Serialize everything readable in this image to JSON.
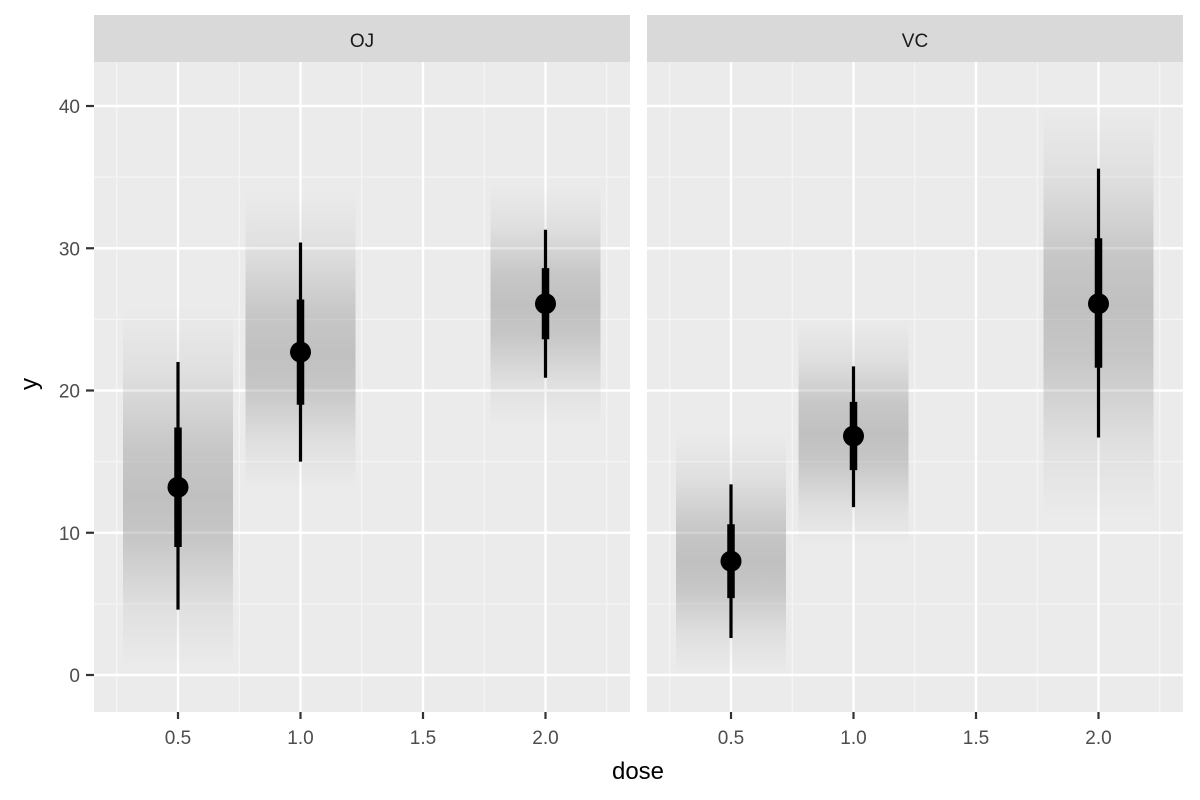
{
  "chart_data": {
    "type": "pointinterval",
    "title": "",
    "xlabel": "dose",
    "ylabel": "y",
    "ylim": [
      -2.5,
      43
    ],
    "yticks": [
      0,
      10,
      20,
      30,
      40
    ],
    "xticks": [
      0.5,
      1.0,
      1.5,
      2.0
    ],
    "xtick_labels": [
      "0.5",
      "1.0",
      "1.5",
      "2.0"
    ],
    "xlim": [
      0.25,
      2.34
    ],
    "grid": true,
    "legend": null,
    "facets": [
      {
        "label": "OJ",
        "points": [
          {
            "dose": 0.5,
            "y": 13.2,
            "inner_lo": 9.0,
            "inner_hi": 17.4,
            "outer_lo": 4.6,
            "outer_hi": 22.0,
            "band_lo": 0.5,
            "band_hi": 26.0,
            "band_peak": 12.5
          },
          {
            "dose": 1.0,
            "y": 22.7,
            "inner_lo": 19.0,
            "inner_hi": 26.4,
            "outer_lo": 15.0,
            "outer_hi": 30.4,
            "band_lo": 13.0,
            "band_hi": 34.0,
            "band_peak": 22.5
          },
          {
            "dose": 2.0,
            "y": 26.1,
            "inner_lo": 23.6,
            "inner_hi": 28.6,
            "outer_lo": 20.9,
            "outer_hi": 31.3,
            "band_lo": 17.5,
            "band_hi": 34.5,
            "band_peak": 26.0
          }
        ]
      },
      {
        "label": "VC",
        "points": [
          {
            "dose": 0.5,
            "y": 8.0,
            "inner_lo": 5.4,
            "inner_hi": 10.6,
            "outer_lo": 2.6,
            "outer_hi": 13.4,
            "band_lo": 0.0,
            "band_hi": 17.0,
            "band_peak": 8.0
          },
          {
            "dose": 1.0,
            "y": 16.8,
            "inner_lo": 14.4,
            "inner_hi": 19.2,
            "outer_lo": 11.8,
            "outer_hi": 21.7,
            "band_lo": 9.0,
            "band_hi": 25.0,
            "band_peak": 17.0
          },
          {
            "dose": 2.0,
            "y": 26.1,
            "inner_lo": 21.6,
            "inner_hi": 30.7,
            "outer_lo": 16.7,
            "outer_hi": 35.6,
            "band_lo": 11.0,
            "band_hi": 40.0,
            "band_peak": 26.0
          }
        ]
      }
    ]
  },
  "colors": {
    "panel_bg": "#ebebeb",
    "strip_bg": "#d9d9d9",
    "grid_major": "#ffffff",
    "grid_minor": "#f5f5f5",
    "point": "#000000",
    "band": "#8c8c8c",
    "axis_text": "#4d4d4d",
    "title_text": "#1a1a1a"
  }
}
